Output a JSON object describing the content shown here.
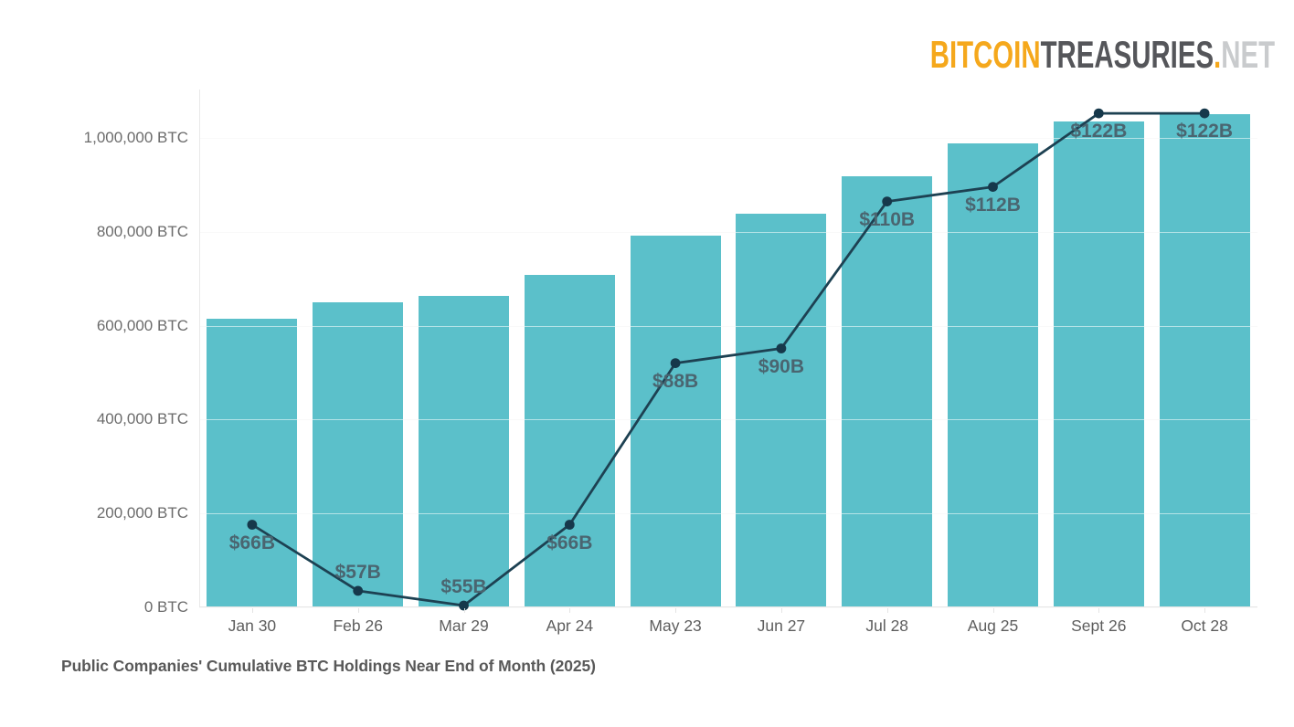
{
  "brand": {
    "bitcoin": "BITCOIN",
    "treasuries": "TREASURIES",
    "dot": ".",
    "net": "NET",
    "bitcoin_color": "#F5A81C",
    "treasuries_color": "#55565A",
    "net_color": "#C9CBCD"
  },
  "caption": "Public Companies' Cumulative BTC Holdings Near End of Month (2025)",
  "chart_data": {
    "type": "bar",
    "title": "Public Companies' Cumulative BTC Holdings Near End of Month (2025)",
    "categories": [
      "Jan 30",
      "Feb 26",
      "Mar 29",
      "Apr 24",
      "May 23",
      "Jun 27",
      "Jul 28",
      "Aug 25",
      "Sept 26",
      "Oct 28"
    ],
    "series": [
      {
        "name": "Cumulative BTC Holdings",
        "type": "bar",
        "unit": "BTC",
        "color": "#5BC0CA",
        "values": [
          615000,
          650000,
          664000,
          709000,
          792000,
          839000,
          919000,
          989000,
          1034000,
          1050000
        ]
      },
      {
        "name": "USD Value",
        "type": "line",
        "unit": "$B",
        "color": "#1D4152",
        "dot_color": "#16384B",
        "values": [
          66,
          57,
          55,
          66,
          88,
          90,
          110,
          112,
          122,
          122
        ],
        "point_labels": [
          "$66B",
          "$57B",
          "$55B",
          "$66B",
          "$88B",
          "$90B",
          "$110B",
          "$112B",
          "$122B",
          "$122B"
        ],
        "label_positions": [
          "below",
          "above",
          "above",
          "below",
          "below",
          "below",
          "below",
          "below",
          "below",
          "below"
        ]
      }
    ],
    "y_axis": {
      "ticks": [
        {
          "value": 0,
          "label": "0 BTC"
        },
        {
          "value": 200000,
          "label": "200,000 BTC"
        },
        {
          "value": 400000,
          "label": "400,000 BTC"
        },
        {
          "value": 600000,
          "label": "600,000 BTC"
        },
        {
          "value": 800000,
          "label": "800,000 BTC"
        },
        {
          "value": 1000000,
          "label": "1,000,000 BTC"
        }
      ],
      "ylim": [
        0,
        1103000
      ]
    },
    "y2_axis": {
      "ylim": [
        54.75,
        125.25
      ],
      "visible": false
    },
    "grid": "horizontal",
    "legend": "none",
    "background": "#FFFFFF"
  }
}
